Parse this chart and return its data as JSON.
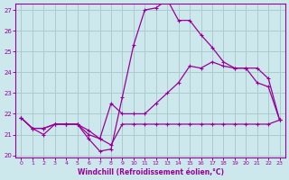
{
  "xlabel": "Windchill (Refroidissement éolien,°C)",
  "bg_color": "#cce8ec",
  "grid_color": "#aacccc",
  "line_color": "#990099",
  "xlim": [
    0,
    23
  ],
  "ylim": [
    20,
    27
  ],
  "yticks": [
    20,
    21,
    22,
    23,
    24,
    25,
    26,
    27
  ],
  "xticks": [
    0,
    1,
    2,
    3,
    4,
    5,
    6,
    7,
    8,
    9,
    10,
    11,
    12,
    13,
    14,
    15,
    16,
    17,
    18,
    19,
    20,
    21,
    22,
    23
  ],
  "line1_x": [
    0,
    1,
    2,
    3,
    4,
    5,
    6,
    7,
    8,
    9,
    10,
    11,
    12,
    13,
    14,
    15,
    16,
    17,
    18,
    19,
    20,
    21,
    22,
    23
  ],
  "line1_y": [
    21.8,
    21.3,
    21.3,
    21.5,
    21.5,
    21.5,
    21.2,
    20.8,
    20.5,
    21.5,
    21.5,
    21.5,
    21.5,
    21.5,
    21.5,
    21.5,
    21.5,
    21.5,
    21.5,
    21.5,
    21.5,
    21.5,
    21.5,
    21.7
  ],
  "line2_x": [
    0,
    1,
    2,
    3,
    4,
    5,
    6,
    7,
    8,
    9,
    10,
    11,
    12,
    13,
    14,
    15,
    16,
    17,
    18,
    19,
    20,
    21,
    22,
    23
  ],
  "line2_y": [
    21.8,
    21.3,
    21.0,
    21.5,
    21.5,
    21.5,
    20.8,
    20.2,
    20.3,
    22.8,
    25.3,
    27.0,
    27.1,
    27.5,
    26.5,
    26.5,
    25.8,
    25.2,
    24.5,
    24.2,
    24.2,
    23.5,
    23.3,
    21.7
  ],
  "line3_x": [
    0,
    1,
    2,
    3,
    4,
    5,
    6,
    7,
    8,
    9,
    10,
    11,
    12,
    13,
    14,
    15,
    16,
    17,
    18,
    19,
    20,
    21,
    22,
    23
  ],
  "line3_y": [
    21.8,
    21.3,
    21.3,
    21.5,
    21.5,
    21.5,
    21.0,
    20.8,
    22.5,
    22.0,
    22.0,
    22.0,
    22.5,
    23.0,
    23.5,
    24.3,
    24.2,
    24.5,
    24.3,
    24.2,
    24.2,
    24.2,
    23.7,
    21.7
  ]
}
